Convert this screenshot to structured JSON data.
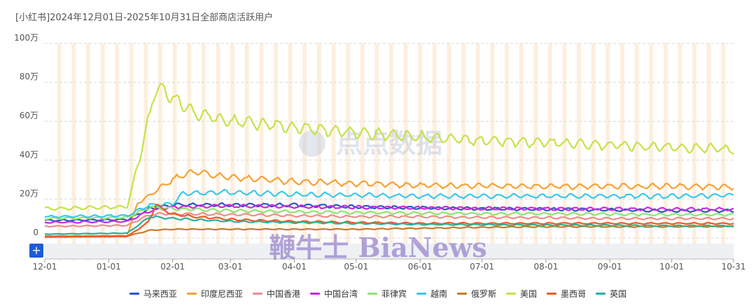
{
  "chart_data": {
    "type": "line",
    "title": "[小红书]2024年12月01日-2025年10月31日全部商店活跃用户",
    "x_range": [
      "2024-12-01",
      "2025-10-31"
    ],
    "x_ticks": [
      "12-01",
      "01-01",
      "02-01",
      "03-01",
      "04-01",
      "05-01",
      "06-01",
      "07-01",
      "08-01",
      "09-01",
      "10-01",
      "10-31"
    ],
    "y_ticks": [
      "0",
      "20万",
      "40万",
      "60万",
      "80万",
      "100万"
    ],
    "ylim": [
      0,
      1000000
    ],
    "grid": true,
    "weekend_bands": true,
    "legend_position": "bottom",
    "series": [
      {
        "name": "马来西亚",
        "color": "#2a56c6",
        "points": [
          [
            "2024-12-01",
            90000
          ],
          [
            "2025-01-10",
            95000
          ],
          [
            "2025-01-21",
            150000
          ],
          [
            "2025-02-01",
            170000
          ],
          [
            "2025-03-01",
            170000
          ],
          [
            "2025-04-01",
            170000
          ],
          [
            "2025-05-01",
            160000
          ],
          [
            "2025-06-01",
            155000
          ],
          [
            "2025-07-01",
            150000
          ],
          [
            "2025-08-01",
            148000
          ],
          [
            "2025-09-01",
            145000
          ],
          [
            "2025-10-01",
            140000
          ],
          [
            "2025-10-31",
            140000
          ]
        ]
      },
      {
        "name": "印度尼西亚",
        "color": "#f5a236",
        "points": [
          [
            "2024-12-01",
            10000
          ],
          [
            "2025-01-10",
            12000
          ],
          [
            "2025-01-15",
            180000
          ],
          [
            "2025-01-21",
            220000
          ],
          [
            "2025-02-01",
            300000
          ],
          [
            "2025-02-10",
            340000
          ],
          [
            "2025-03-01",
            310000
          ],
          [
            "2025-04-01",
            290000
          ],
          [
            "2025-05-01",
            280000
          ],
          [
            "2025-06-01",
            270000
          ],
          [
            "2025-07-01",
            268000
          ],
          [
            "2025-08-01",
            265000
          ],
          [
            "2025-09-01",
            265000
          ],
          [
            "2025-10-01",
            265000
          ],
          [
            "2025-10-31",
            262000
          ]
        ]
      },
      {
        "name": "中国香港",
        "color": "#f08c8c",
        "points": [
          [
            "2024-12-01",
            60000
          ],
          [
            "2025-01-10",
            65000
          ],
          [
            "2025-01-21",
            120000
          ],
          [
            "2025-02-01",
            125000
          ],
          [
            "2025-03-01",
            120000
          ],
          [
            "2025-04-01",
            115000
          ],
          [
            "2025-05-01",
            110000
          ],
          [
            "2025-06-01",
            110000
          ],
          [
            "2025-07-01",
            105000
          ],
          [
            "2025-08-01",
            105000
          ],
          [
            "2025-09-01",
            100000
          ],
          [
            "2025-10-01",
            100000
          ],
          [
            "2025-10-31",
            100000
          ]
        ]
      },
      {
        "name": "中国台湾",
        "color": "#c62be0",
        "points": [
          [
            "2024-12-01",
            80000
          ],
          [
            "2025-01-10",
            85000
          ],
          [
            "2025-01-21",
            140000
          ],
          [
            "2025-02-01",
            160000
          ],
          [
            "2025-03-01",
            165000
          ],
          [
            "2025-04-01",
            160000
          ],
          [
            "2025-05-01",
            158000
          ],
          [
            "2025-06-01",
            155000
          ],
          [
            "2025-07-01",
            152000
          ],
          [
            "2025-08-01",
            150000
          ],
          [
            "2025-09-01",
            150000
          ],
          [
            "2025-10-01",
            148000
          ],
          [
            "2025-10-31",
            148000
          ]
        ]
      },
      {
        "name": "菲律宾",
        "color": "#8ee474",
        "points": [
          [
            "2024-12-01",
            100000
          ],
          [
            "2025-01-10",
            105000
          ],
          [
            "2025-01-21",
            160000
          ],
          [
            "2025-02-01",
            150000
          ],
          [
            "2025-03-01",
            140000
          ],
          [
            "2025-04-01",
            135000
          ],
          [
            "2025-05-01",
            130000
          ],
          [
            "2025-06-01",
            128000
          ],
          [
            "2025-07-01",
            125000
          ],
          [
            "2025-08-01",
            125000
          ],
          [
            "2025-09-01",
            122000
          ],
          [
            "2025-10-01",
            120000
          ],
          [
            "2025-10-31",
            120000
          ]
        ]
      },
      {
        "name": "越南",
        "color": "#3bc8ea",
        "points": [
          [
            "2024-12-01",
            110000
          ],
          [
            "2025-01-10",
            115000
          ],
          [
            "2025-01-21",
            170000
          ],
          [
            "2025-02-01",
            175000
          ],
          [
            "2025-02-06",
            230000
          ],
          [
            "2025-03-01",
            235000
          ],
          [
            "2025-04-01",
            225000
          ],
          [
            "2025-05-01",
            220000
          ],
          [
            "2025-06-01",
            215000
          ],
          [
            "2025-07-01",
            215000
          ],
          [
            "2025-08-01",
            215000
          ],
          [
            "2025-09-01",
            215000
          ],
          [
            "2025-10-01",
            215000
          ],
          [
            "2025-10-31",
            220000
          ]
        ]
      },
      {
        "name": "俄罗斯",
        "color": "#c47d2e",
        "points": [
          [
            "2024-12-01",
            8000
          ],
          [
            "2025-01-10",
            10000
          ],
          [
            "2025-01-21",
            40000
          ],
          [
            "2025-02-01",
            45000
          ],
          [
            "2025-03-01",
            45000
          ],
          [
            "2025-04-01",
            45000
          ],
          [
            "2025-05-01",
            45000
          ],
          [
            "2025-06-01",
            50000
          ],
          [
            "2025-07-01",
            55000
          ],
          [
            "2025-08-01",
            58000
          ],
          [
            "2025-09-01",
            58000
          ],
          [
            "2025-10-01",
            58000
          ],
          [
            "2025-10-31",
            60000
          ]
        ]
      },
      {
        "name": "美国",
        "color": "#c6e24a",
        "points": [
          [
            "2024-12-01",
            150000
          ],
          [
            "2025-01-10",
            160000
          ],
          [
            "2025-01-18",
            500000
          ],
          [
            "2025-01-24",
            780000
          ],
          [
            "2025-01-29",
            750000
          ],
          [
            "2025-02-01",
            720000
          ],
          [
            "2025-02-10",
            650000
          ],
          [
            "2025-03-01",
            600000
          ],
          [
            "2025-04-01",
            570000
          ],
          [
            "2025-05-01",
            540000
          ],
          [
            "2025-06-01",
            520000
          ],
          [
            "2025-07-01",
            500000
          ],
          [
            "2025-08-01",
            490000
          ],
          [
            "2025-09-01",
            475000
          ],
          [
            "2025-10-01",
            465000
          ],
          [
            "2025-10-31",
            455000
          ]
        ]
      },
      {
        "name": "墨西哥",
        "color": "#ee5a24",
        "points": [
          [
            "2024-12-01",
            5000
          ],
          [
            "2025-01-10",
            8000
          ],
          [
            "2025-01-20",
            80000
          ],
          [
            "2025-01-24",
            170000
          ],
          [
            "2025-02-01",
            120000
          ],
          [
            "2025-03-01",
            95000
          ],
          [
            "2025-04-01",
            85000
          ],
          [
            "2025-05-01",
            80000
          ],
          [
            "2025-06-01",
            75000
          ],
          [
            "2025-07-01",
            75000
          ],
          [
            "2025-08-01",
            75000
          ],
          [
            "2025-09-01",
            75000
          ],
          [
            "2025-10-01",
            75000
          ],
          [
            "2025-10-31",
            75000
          ]
        ]
      },
      {
        "name": "英国",
        "color": "#2bb09c",
        "points": [
          [
            "2024-12-01",
            20000
          ],
          [
            "2025-01-10",
            25000
          ],
          [
            "2025-01-21",
            110000
          ],
          [
            "2025-02-01",
            100000
          ],
          [
            "2025-03-01",
            85000
          ],
          [
            "2025-04-01",
            80000
          ],
          [
            "2025-05-01",
            75000
          ],
          [
            "2025-06-01",
            70000
          ],
          [
            "2025-07-01",
            68000
          ],
          [
            "2025-08-01",
            66000
          ],
          [
            "2025-09-01",
            65000
          ],
          [
            "2025-10-01",
            63000
          ],
          [
            "2025-10-31",
            62000
          ]
        ]
      }
    ]
  },
  "watermark": {
    "center_text": "点点数据",
    "bottom_text": "鞭牛士 BiaNews"
  },
  "controls": {
    "zoom_label": "+"
  }
}
